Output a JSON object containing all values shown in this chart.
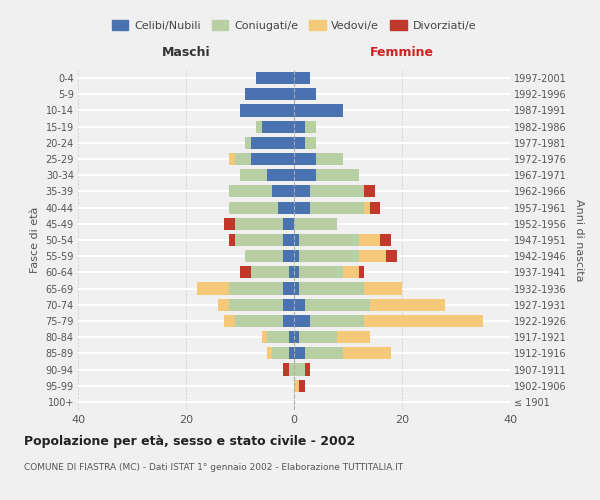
{
  "age_groups": [
    "100+",
    "95-99",
    "90-94",
    "85-89",
    "80-84",
    "75-79",
    "70-74",
    "65-69",
    "60-64",
    "55-59",
    "50-54",
    "45-49",
    "40-44",
    "35-39",
    "30-34",
    "25-29",
    "20-24",
    "15-19",
    "10-14",
    "5-9",
    "0-4"
  ],
  "birth_years": [
    "≤ 1901",
    "1902-1906",
    "1907-1911",
    "1912-1916",
    "1917-1921",
    "1922-1926",
    "1927-1931",
    "1932-1936",
    "1937-1941",
    "1942-1946",
    "1947-1951",
    "1952-1956",
    "1957-1961",
    "1962-1966",
    "1967-1971",
    "1972-1976",
    "1977-1981",
    "1982-1986",
    "1987-1991",
    "1992-1996",
    "1997-2001"
  ],
  "males": {
    "celibi": [
      0,
      0,
      0,
      1,
      1,
      2,
      2,
      2,
      1,
      2,
      2,
      2,
      3,
      4,
      5,
      8,
      8,
      6,
      10,
      9,
      7
    ],
    "coniugati": [
      0,
      0,
      1,
      3,
      4,
      9,
      10,
      10,
      7,
      7,
      9,
      9,
      9,
      8,
      5,
      3,
      1,
      1,
      0,
      0,
      0
    ],
    "vedovi": [
      0,
      0,
      0,
      1,
      1,
      2,
      2,
      6,
      0,
      0,
      0,
      0,
      0,
      0,
      0,
      1,
      0,
      0,
      0,
      0,
      0
    ],
    "divorziati": [
      0,
      0,
      1,
      0,
      0,
      0,
      0,
      0,
      2,
      0,
      1,
      2,
      0,
      0,
      0,
      0,
      0,
      0,
      0,
      0,
      0
    ]
  },
  "females": {
    "nubili": [
      0,
      0,
      0,
      2,
      1,
      3,
      2,
      1,
      1,
      1,
      1,
      0,
      3,
      3,
      4,
      4,
      2,
      2,
      9,
      4,
      3
    ],
    "coniugate": [
      0,
      0,
      2,
      7,
      7,
      10,
      12,
      12,
      8,
      11,
      11,
      8,
      10,
      10,
      8,
      5,
      2,
      2,
      0,
      0,
      0
    ],
    "vedove": [
      0,
      1,
      0,
      9,
      6,
      22,
      14,
      7,
      3,
      5,
      4,
      0,
      1,
      0,
      0,
      0,
      0,
      0,
      0,
      0,
      0
    ],
    "divorziate": [
      0,
      1,
      1,
      0,
      0,
      0,
      0,
      0,
      1,
      2,
      2,
      0,
      2,
      2,
      0,
      0,
      0,
      0,
      0,
      0,
      0
    ]
  },
  "colors": {
    "celibi": "#4a72b0",
    "coniugati": "#b8cfa4",
    "vedovi": "#f5c97a",
    "divorziati": "#c0392b"
  },
  "xlim": [
    -40,
    40
  ],
  "title": "Popolazione per età, sesso e stato civile - 2002",
  "subtitle": "COMUNE DI FIASTRA (MC) - Dati ISTAT 1° gennaio 2002 - Elaborazione TUTTITALIA.IT",
  "xlabel_left": "Maschi",
  "xlabel_right": "Femmine",
  "ylabel_left": "Fasce di età",
  "ylabel_right": "Anni di nascita",
  "legend_labels": [
    "Celibi/Nubili",
    "Coniugati/e",
    "Vedovi/e",
    "Divorziati/e"
  ],
  "background_color": "#f0f0f0"
}
